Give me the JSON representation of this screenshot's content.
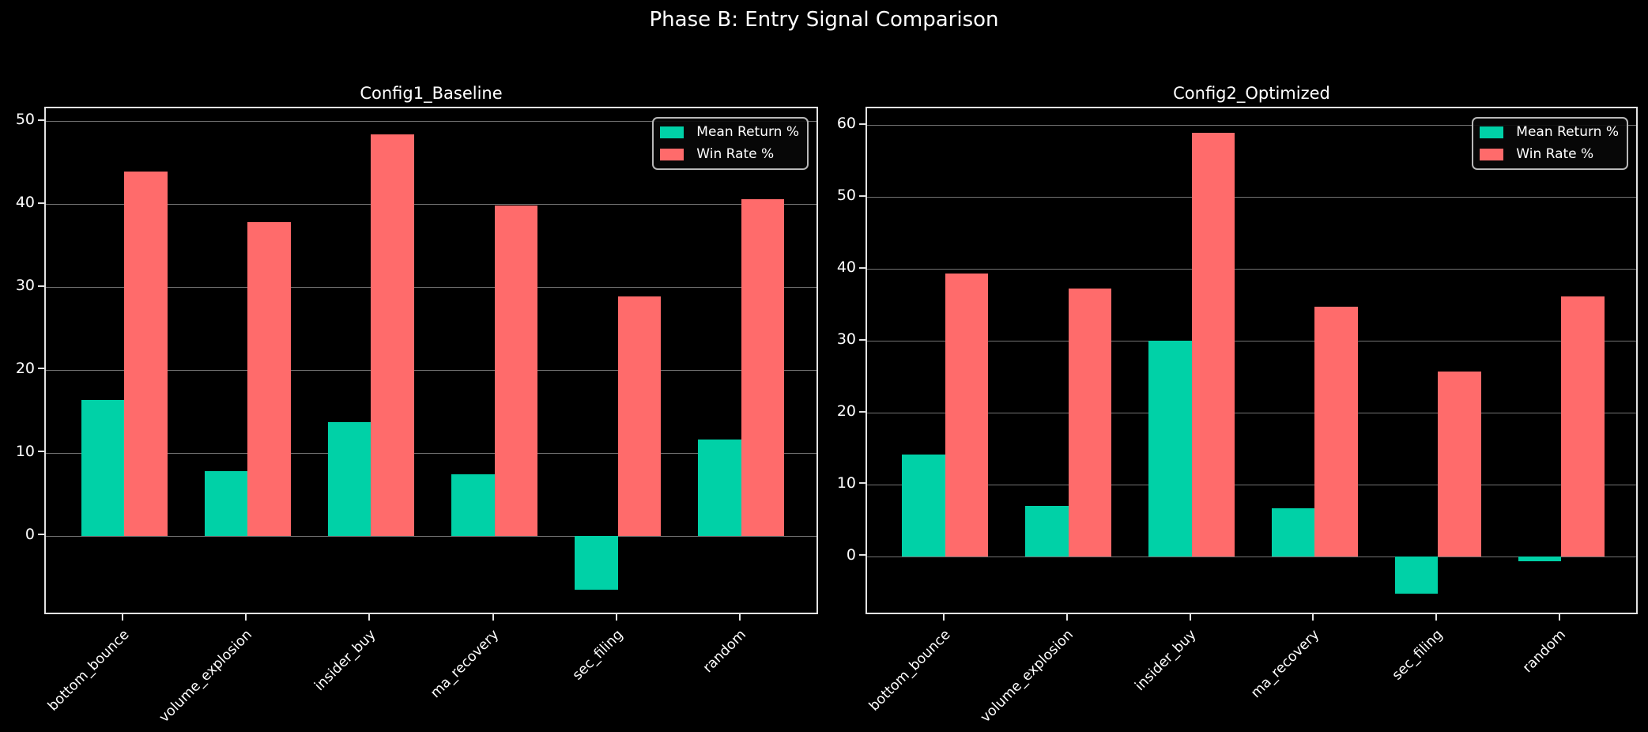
{
  "suptitle": "Phase B: Entry Signal Comparison",
  "colors": {
    "background": "#000000",
    "text": "#ffffff",
    "mean_return": "#00d1a7",
    "win_rate": "#ff6b6b",
    "grid": "#737373",
    "spine": "#e3e3e3"
  },
  "legend": {
    "items": [
      {
        "label": "Mean Return %",
        "color": "#00d1a7"
      },
      {
        "label": "Win Rate %",
        "color": "#ff6b6b"
      }
    ]
  },
  "chart_data": [
    {
      "type": "bar",
      "title": "Config1_Baseline",
      "categories": [
        "bottom_bounce",
        "volume_explosion",
        "insider_buy",
        "ma_recovery",
        "sec_filing",
        "random"
      ],
      "series": [
        {
          "name": "Mean Return %",
          "color": "#00d1a7",
          "values": [
            16.4,
            7.8,
            13.8,
            7.5,
            -6.5,
            11.7
          ]
        },
        {
          "name": "Win Rate %",
          "color": "#ff6b6b",
          "values": [
            44.0,
            37.9,
            48.5,
            39.9,
            28.9,
            40.6
          ]
        }
      ],
      "yticks": [
        0,
        10,
        20,
        30,
        40,
        50
      ],
      "ylim": [
        -9.6,
        51.6
      ],
      "grid": true,
      "legend_position": "upper right"
    },
    {
      "type": "bar",
      "title": "Config2_Optimized",
      "categories": [
        "bottom_bounce",
        "volume_explosion",
        "insider_buy",
        "ma_recovery",
        "sec_filing",
        "random"
      ],
      "series": [
        {
          "name": "Mean Return %",
          "color": "#00d1a7",
          "values": [
            14.2,
            7.1,
            30.1,
            6.8,
            -5.1,
            -0.6
          ]
        },
        {
          "name": "Win Rate %",
          "color": "#ff6b6b",
          "values": [
            39.4,
            37.3,
            59.0,
            34.8,
            25.8,
            36.2
          ]
        }
      ],
      "yticks": [
        0,
        10,
        20,
        30,
        40,
        50,
        60
      ],
      "ylim": [
        -8.2,
        62.4
      ],
      "grid": true,
      "legend_position": "upper right"
    }
  ]
}
